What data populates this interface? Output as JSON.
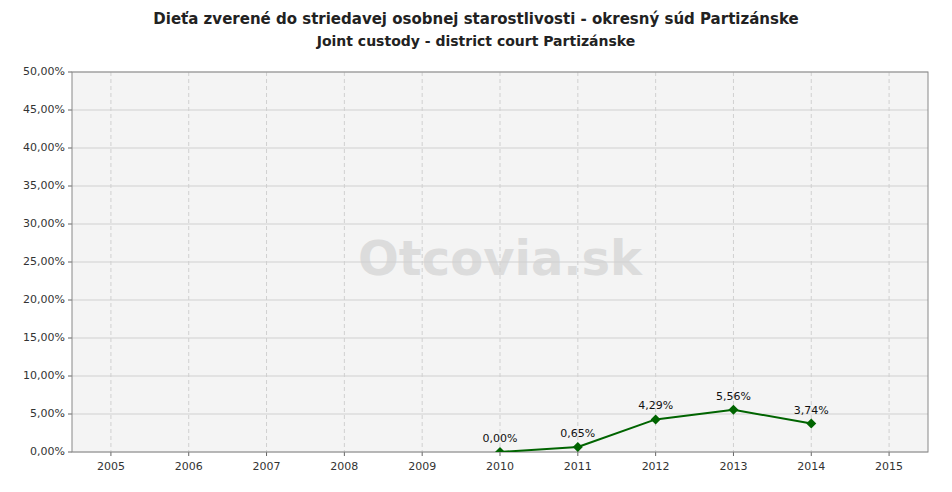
{
  "chart_data": {
    "type": "line",
    "title": "Dieťa zverené do striedavej osobnej starostlivosti - okresný súd Partizánske",
    "subtitle": "Joint custody - district court Partizánske",
    "annotations": [
      "Otcovia.sk"
    ],
    "x": [
      2010,
      2011,
      2012,
      2013,
      2014
    ],
    "values": [
      0,
      0.0065,
      0.0429,
      0.0556,
      0.0374
    ],
    "value_labels": [
      "0,00%",
      "0,65%",
      "4,29%",
      "5,56%",
      "3,74%"
    ],
    "data_labels": true,
    "color": "#006400",
    "marker": "diamond",
    "line_style": "solid",
    "grid": true,
    "xlim": [
      2004.5,
      2015.5
    ],
    "xticks": [
      2005,
      2006,
      2007,
      2008,
      2009,
      2010,
      2011,
      2012,
      2013,
      2014,
      2015
    ],
    "ylim": [
      0,
      0.5
    ],
    "yticks": [
      {
        "value": 0,
        "label": "0,00%"
      },
      {
        "value": 0.05,
        "label": "5,00%"
      },
      {
        "value": 0.1,
        "label": "10,00%"
      },
      {
        "value": 0.15,
        "label": "15,00%"
      },
      {
        "value": 0.2,
        "label": "20,00%"
      },
      {
        "value": 0.25,
        "label": "25,00%"
      },
      {
        "value": 0.3,
        "label": "30,00%"
      },
      {
        "value": 0.35,
        "label": "35,00%"
      },
      {
        "value": 0.4,
        "label": "40,00%"
      },
      {
        "value": 0.45,
        "label": "45,00%"
      },
      {
        "value": 0.5,
        "label": "50,00%"
      }
    ]
  }
}
